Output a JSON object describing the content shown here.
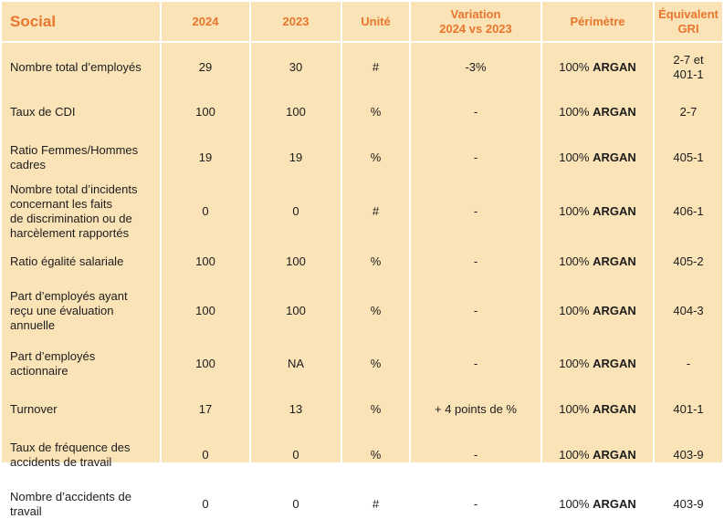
{
  "table": {
    "headers": {
      "section": "Social",
      "col_2024": "2024",
      "col_2023": "2023",
      "unit": "Unité",
      "variation": "Variation\n2024 vs 2023",
      "perimeter": "Périmètre",
      "gri": "Équivalent\nGRI"
    },
    "rows": [
      {
        "label": "Nombre total d’employés",
        "v2024": "29",
        "v2023": "30",
        "unit": "#",
        "variation": "-3%",
        "perim_pct": "100%",
        "perim_name": "ARGAN",
        "gri": "2-7 et\n401-1"
      },
      {
        "label": "Taux de CDI",
        "v2024": "100",
        "v2023": "100",
        "unit": "%",
        "variation": "-",
        "perim_pct": "100%",
        "perim_name": "ARGAN",
        "gri": "2-7"
      },
      {
        "label": "Ratio Femmes/Hommes\ncadres",
        "v2024": "19",
        "v2023": "19",
        "unit": "%",
        "variation": "-",
        "perim_pct": "100%",
        "perim_name": "ARGAN",
        "gri": "405-1"
      },
      {
        "label": "Nombre total d’incidents\nconcernant les faits\nde discrimination ou de\nharcèlement rapportés",
        "v2024": "0",
        "v2023": "0",
        "unit": "#",
        "variation": "-",
        "perim_pct": "100%",
        "perim_name": "ARGAN",
        "gri": "406-1"
      },
      {
        "label": "Ratio égalité salariale",
        "v2024": "100",
        "v2023": "100",
        "unit": "%",
        "variation": "-",
        "perim_pct": "100%",
        "perim_name": "ARGAN",
        "gri": "405-2"
      },
      {
        "label": "Part d’employés ayant\nreçu une évaluation\nannuelle",
        "v2024": "100",
        "v2023": "100",
        "unit": "%",
        "variation": "-",
        "perim_pct": "100%",
        "perim_name": "ARGAN",
        "gri": "404-3"
      },
      {
        "label": "Part d’employés\nactionnaire",
        "v2024": "100",
        "v2023": "NA",
        "unit": "%",
        "variation": "-",
        "perim_pct": "100%",
        "perim_name": "ARGAN",
        "gri": "-"
      },
      {
        "label": "Turnover",
        "v2024": "17",
        "v2023": "13",
        "unit": "%",
        "variation": "+ 4 points de %",
        "perim_pct": "100%",
        "perim_name": "ARGAN",
        "gri": "401-1"
      },
      {
        "label": "Taux de fréquence des\naccidents de travail",
        "v2024": "0",
        "v2023": "0",
        "unit": "%",
        "variation": "-",
        "perim_pct": "100%",
        "perim_name": "ARGAN",
        "gri": "403-9"
      },
      {
        "label": "Nombre d’accidents de\ntravail",
        "v2024": "0",
        "v2023": "0",
        "unit": "#",
        "variation": "-",
        "perim_pct": "100%",
        "perim_name": "ARGAN",
        "gri": "403-9"
      }
    ]
  }
}
